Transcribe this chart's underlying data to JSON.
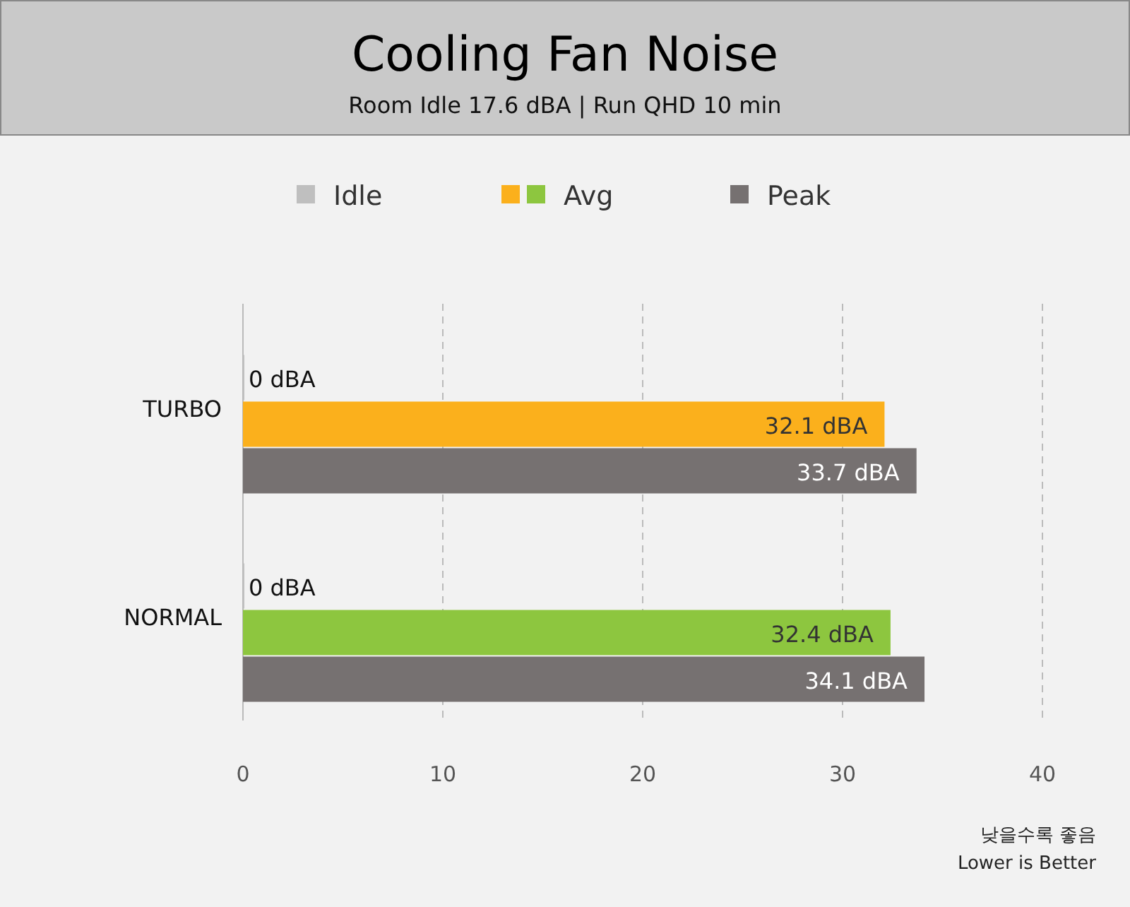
{
  "chart_data": {
    "type": "bar",
    "orientation": "horizontal",
    "title": "Cooling Fan Noise",
    "subtitle": "Room Idle 17.6 dBA  |  Run QHD 10 min",
    "categories": [
      "TURBO",
      "NORMAL"
    ],
    "series": [
      {
        "name": "Idle",
        "color": "#bfbfbf",
        "values": [
          0,
          0
        ],
        "value_labels": [
          "0 dBA",
          "0 dBA"
        ]
      },
      {
        "name": "Avg",
        "colors": [
          "#fbb01c",
          "#8dc63f"
        ],
        "values": [
          32.1,
          32.4
        ],
        "value_labels": [
          "32.1 dBA",
          "32.4 dBA"
        ]
      },
      {
        "name": "Peak",
        "color": "#767171",
        "values": [
          33.7,
          34.1
        ],
        "value_labels": [
          "33.7 dBA",
          "34.1 dBA"
        ]
      }
    ],
    "xlim": [
      0,
      40
    ],
    "xticks": [
      0,
      10,
      20,
      30,
      40
    ],
    "grid": "x",
    "legend": "top",
    "annotations": [
      "낮을수록 좋음",
      "Lower is Better"
    ]
  }
}
